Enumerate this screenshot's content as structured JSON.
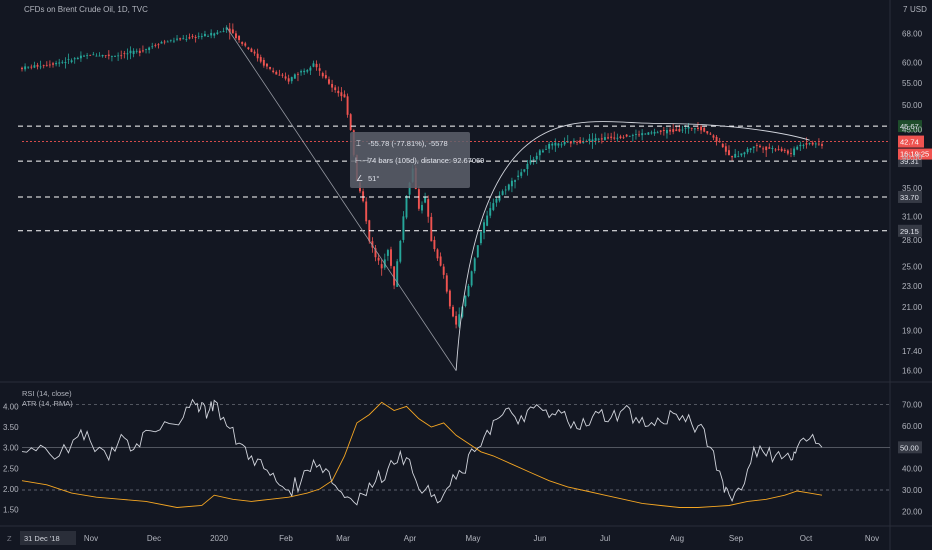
{
  "header": {
    "title": "CFDs on Brent Crude Oil, 1D, TVC",
    "currency": "USD",
    "currency_icon": "7"
  },
  "colors": {
    "background": "#131722",
    "up": "#26a69a",
    "down": "#ef5350",
    "rsi_line": "#d1d4dc",
    "atr_line": "#f5a623",
    "level_line": "#ffffff",
    "last_price_bg": "#ef5350",
    "level_highlight_bg": "#1e4d2b"
  },
  "chart_data": [
    {
      "type": "line",
      "series_kind": "candlestick",
      "title": "CFDs on Brent Crude Oil, 1D, TVC",
      "y_scale": "log",
      "ylim": [
        15.5,
        72
      ],
      "y_ticks": [
        16.0,
        17.4,
        19.0,
        21.0,
        23.0,
        25.0,
        28.0,
        31.0,
        35.0,
        40.0,
        45.0,
        50.0,
        55.0,
        60.0,
        68.0
      ],
      "y_tick_labels": [
        "16.00",
        "17.40",
        "19.00",
        "21.00",
        "23.00",
        "25.00",
        "28.00",
        "31.00",
        "35.00",
        "40.00",
        "45.00",
        "50.00",
        "55.00",
        "60.00",
        "68.00"
      ],
      "x_labels": [
        "Nov",
        "Dec",
        "2020",
        "Feb",
        "Mar",
        "Apr",
        "May",
        "Jun",
        "Jul",
        "Aug",
        "Sep",
        "Oct",
        "Nov"
      ],
      "x_start_label": "31 Dec '18",
      "price_path": [
        [
          0,
          58.6
        ],
        [
          8,
          59.5
        ],
        [
          15,
          60.5
        ],
        [
          22,
          62.0
        ],
        [
          30,
          61.8
        ],
        [
          38,
          63.0
        ],
        [
          45,
          65.5
        ],
        [
          52,
          66.5
        ],
        [
          60,
          67.5
        ],
        [
          64,
          68.5
        ],
        [
          66,
          69.8
        ],
        [
          70,
          66.0
        ],
        [
          74,
          63.0
        ],
        [
          78,
          59.5
        ],
        [
          82,
          57.0
        ],
        [
          86,
          55.5
        ],
        [
          88,
          57.0
        ],
        [
          92,
          58.5
        ],
        [
          94,
          60.0
        ],
        [
          96,
          57.5
        ],
        [
          100,
          54.0
        ],
        [
          104,
          51.5
        ],
        [
          106,
          45.0
        ],
        [
          108,
          36.0
        ],
        [
          110,
          33.0
        ],
        [
          112,
          28.0
        ],
        [
          114,
          26.0
        ],
        [
          116,
          25.0
        ],
        [
          118,
          27.0
        ],
        [
          120,
          23.0
        ],
        [
          122,
          28.0
        ],
        [
          124,
          34.0
        ],
        [
          126,
          38.0
        ],
        [
          128,
          32.0
        ],
        [
          130,
          33.5
        ],
        [
          132,
          28.0
        ],
        [
          134,
          26.0
        ],
        [
          136,
          24.0
        ],
        [
          138,
          21.0
        ],
        [
          140,
          19.5
        ],
        [
          142,
          21.0
        ],
        [
          144,
          23.0
        ],
        [
          146,
          26.0
        ],
        [
          148,
          29.0
        ],
        [
          150,
          31.0
        ],
        [
          152,
          33.0
        ],
        [
          154,
          34.0
        ],
        [
          158,
          36.0
        ],
        [
          162,
          38.0
        ],
        [
          166,
          40.5
        ],
        [
          170,
          42.0
        ],
        [
          176,
          42.5
        ],
        [
          182,
          43.0
        ],
        [
          190,
          43.5
        ],
        [
          198,
          44.0
        ],
        [
          205,
          44.5
        ],
        [
          212,
          45.0
        ],
        [
          218,
          45.5
        ],
        [
          222,
          44.0
        ],
        [
          226,
          42.0
        ],
        [
          228,
          40.0
        ],
        [
          232,
          40.5
        ],
        [
          236,
          42.0
        ],
        [
          240,
          41.5
        ],
        [
          244,
          41.5
        ],
        [
          248,
          40.5
        ],
        [
          250,
          42.0
        ],
        [
          254,
          42.5
        ],
        [
          258,
          42.2
        ]
      ],
      "price_path_note_units": "x = trading day index from first visible bar, y = price in USD",
      "levels": [
        45.67,
        39.31,
        33.7,
        29.15
      ],
      "level_labels": [
        "45.67",
        "39.31",
        "33.70",
        "29.15"
      ],
      "last_price": "42.74",
      "countdown": "16:19:25",
      "measure_tooltip": {
        "line1": "-55.78 (-77.81%), -5578",
        "line2": "74 bars (105d), distance: 92.67069",
        "line3": "51°"
      },
      "trend_line": {
        "from": [
          66,
          69.8
        ],
        "to": [
          140,
          16.0
        ]
      },
      "arc": {
        "from": [
          140,
          16.0
        ],
        "peak": [
          205,
          46.2
        ],
        "to": [
          254,
          43.0
        ]
      }
    },
    {
      "type": "line",
      "title": "RSI (14, close)",
      "title2": "ATR (14, RMA)",
      "right_ticks": [
        20.0,
        30.0,
        40.0,
        50.0,
        60.0,
        70.0
      ],
      "right_tick_labels": [
        "20.00",
        "30.00",
        "40.00",
        "50.00",
        "60.00",
        "70.00"
      ],
      "left_ticks": [
        1.5,
        2.0,
        2.5,
        3.0,
        3.5,
        4.0
      ],
      "left_tick_labels": [
        "1.50",
        "2.00",
        "2.50",
        "3.00",
        "3.50",
        "4.00"
      ],
      "rsi_bands": [
        70,
        30
      ],
      "rsi_highlight": "50.00",
      "series": [
        {
          "name": "RSI",
          "axis": "right",
          "values": [
            [
              0,
              48
            ],
            [
              6,
              51
            ],
            [
              12,
              46
            ],
            [
              18,
              55
            ],
            [
              22,
              53
            ],
            [
              28,
              44
            ],
            [
              32,
              56
            ],
            [
              36,
              49
            ],
            [
              40,
              58
            ],
            [
              46,
              62
            ],
            [
              52,
              64
            ],
            [
              56,
              70
            ],
            [
              58,
              71
            ],
            [
              60,
              66
            ],
            [
              62,
              72
            ],
            [
              66,
              60
            ],
            [
              70,
              52
            ],
            [
              74,
              46
            ],
            [
              78,
              40
            ],
            [
              82,
              34
            ],
            [
              86,
              30
            ],
            [
              90,
              34
            ],
            [
              94,
              44
            ],
            [
              98,
              40
            ],
            [
              102,
              30
            ],
            [
              106,
              26
            ],
            [
              110,
              28
            ],
            [
              114,
              34
            ],
            [
              118,
              40
            ],
            [
              122,
              48
            ],
            [
              126,
              38
            ],
            [
              130,
              30
            ],
            [
              134,
              24
            ],
            [
              138,
              32
            ],
            [
              142,
              38
            ],
            [
              146,
              48
            ],
            [
              150,
              58
            ],
            [
              154,
              64
            ],
            [
              158,
              66
            ],
            [
              162,
              62
            ],
            [
              166,
              70
            ],
            [
              170,
              64
            ],
            [
              174,
              66
            ],
            [
              178,
              62
            ],
            [
              182,
              60
            ],
            [
              186,
              66
            ],
            [
              190,
              64
            ],
            [
              194,
              68
            ],
            [
              198,
              64
            ],
            [
              202,
              60
            ],
            [
              206,
              62
            ],
            [
              210,
              66
            ],
            [
              214,
              62
            ],
            [
              218,
              60
            ],
            [
              222,
              50
            ],
            [
              226,
              34
            ],
            [
              228,
              28
            ],
            [
              232,
              30
            ],
            [
              236,
              50
            ],
            [
              240,
              46
            ],
            [
              244,
              48
            ],
            [
              248,
              44
            ],
            [
              250,
              50
            ],
            [
              254,
              54
            ],
            [
              258,
              50
            ]
          ]
        },
        {
          "name": "ATR",
          "axis": "left",
          "values": [
            [
              0,
              2.2
            ],
            [
              8,
              2.1
            ],
            [
              16,
              1.9
            ],
            [
              24,
              1.8
            ],
            [
              32,
              1.75
            ],
            [
              40,
              1.7
            ],
            [
              50,
              1.55
            ],
            [
              58,
              1.6
            ],
            [
              62,
              1.85
            ],
            [
              68,
              1.75
            ],
            [
              74,
              1.7
            ],
            [
              80,
              1.75
            ],
            [
              86,
              1.8
            ],
            [
              92,
              1.9
            ],
            [
              96,
              2.0
            ],
            [
              100,
              2.2
            ],
            [
              104,
              2.8
            ],
            [
              108,
              3.6
            ],
            [
              112,
              3.8
            ],
            [
              116,
              4.1
            ],
            [
              120,
              3.9
            ],
            [
              124,
              4.0
            ],
            [
              128,
              3.7
            ],
            [
              132,
              3.5
            ],
            [
              136,
              3.6
            ],
            [
              140,
              3.3
            ],
            [
              144,
              3.1
            ],
            [
              148,
              2.9
            ],
            [
              152,
              2.8
            ],
            [
              158,
              2.6
            ],
            [
              164,
              2.4
            ],
            [
              170,
              2.2
            ],
            [
              176,
              2.05
            ],
            [
              182,
              1.95
            ],
            [
              188,
              1.85
            ],
            [
              194,
              1.75
            ],
            [
              200,
              1.65
            ],
            [
              206,
              1.6
            ],
            [
              212,
              1.55
            ],
            [
              218,
              1.55
            ],
            [
              224,
              1.58
            ],
            [
              228,
              1.6
            ],
            [
              234,
              1.7
            ],
            [
              240,
              1.75
            ],
            [
              246,
              1.85
            ],
            [
              250,
              1.95
            ],
            [
              254,
              1.9
            ],
            [
              258,
              1.85
            ]
          ]
        }
      ]
    }
  ]
}
